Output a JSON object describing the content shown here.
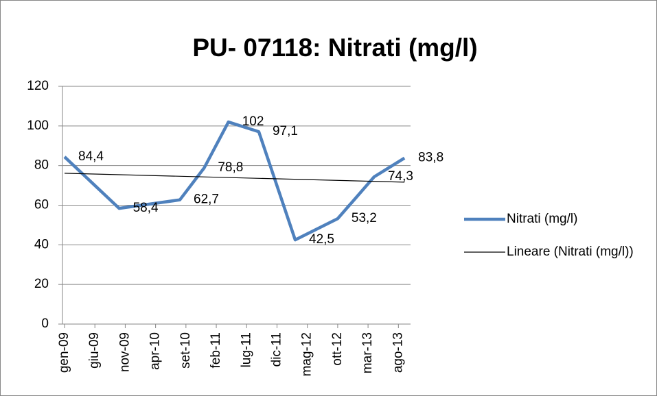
{
  "chart_data": {
    "type": "line",
    "title": "PU- 07118: Nitrati (mg/l)",
    "x": [
      "2009-01",
      "2009-10",
      "2010-08",
      "2010-12",
      "2011-04",
      "2011-09",
      "2012-03",
      "2012-10",
      "2013-04",
      "2013-09"
    ],
    "series": [
      {
        "name": "Nitrati (mg/l)",
        "color": "#4f81bd",
        "values": [
          84.4,
          58.4,
          62.7,
          78.8,
          102,
          97.1,
          42.5,
          53.2,
          74.3,
          83.8
        ],
        "value_labels": [
          "84,4",
          "58,4",
          "62,7",
          "78,8",
          "102",
          "97,1",
          "42,5",
          "53,2",
          "74,3",
          "83,8"
        ]
      }
    ],
    "trendline": {
      "name": "Lineare (Nitrati (mg/l))",
      "color": "#000000"
    },
    "xlim": [
      "2009-01",
      "2013-10"
    ],
    "xticks": [
      {
        "value": "2009-01",
        "label": "gen-09"
      },
      {
        "value": "2009-06",
        "label": "giu-09"
      },
      {
        "value": "2009-11",
        "label": "nov-09"
      },
      {
        "value": "2010-04",
        "label": "apr-10"
      },
      {
        "value": "2010-09",
        "label": "set-10"
      },
      {
        "value": "2011-02",
        "label": "feb-11"
      },
      {
        "value": "2011-07",
        "label": "lug-11"
      },
      {
        "value": "2011-12",
        "label": "dic-11"
      },
      {
        "value": "2012-05",
        "label": "mag-12"
      },
      {
        "value": "2012-10",
        "label": "ott-12"
      },
      {
        "value": "2013-03",
        "label": "mar-13"
      },
      {
        "value": "2013-08",
        "label": "ago-13"
      }
    ],
    "ylim": [
      0,
      120
    ],
    "yticks": [
      0,
      20,
      40,
      60,
      80,
      100,
      120
    ],
    "grid": true,
    "legend": "right"
  }
}
